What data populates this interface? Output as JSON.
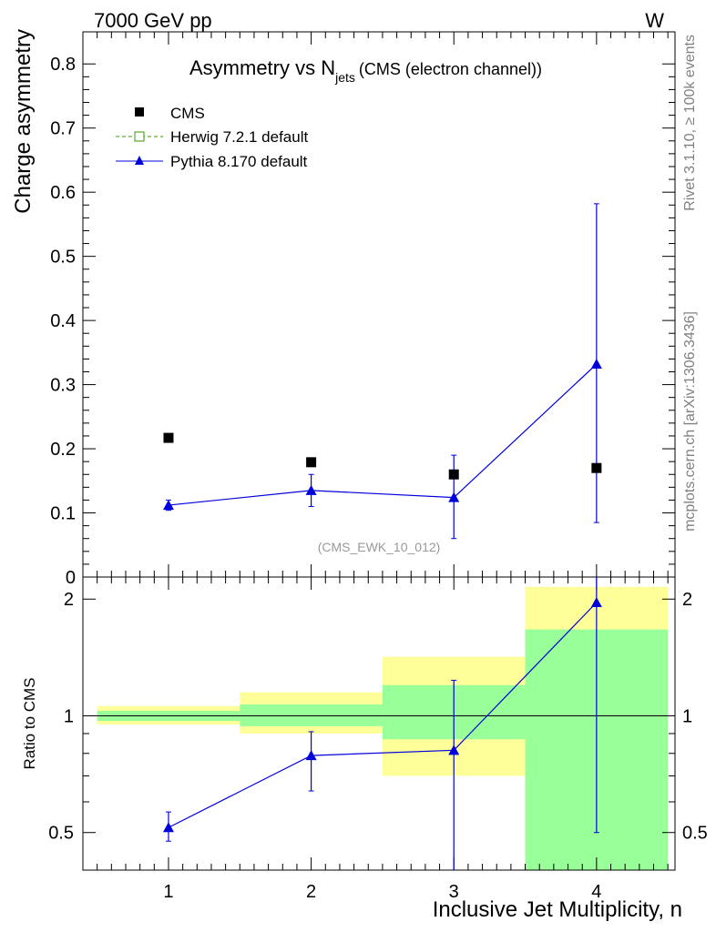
{
  "header": {
    "energy_label": "7000 GeV pp",
    "process_label": "W"
  },
  "side_labels": {
    "rivet": "Rivet 3.1.10, ≥ 100k events",
    "mcplots": "mcplots.cern.ch [arXiv:1306.3436]"
  },
  "chart_data": [
    {
      "type": "scatter",
      "title_main": "Asymmetry vs N",
      "title_sub": "jets",
      "title_suffix": "(CMS (electron channel))",
      "ylabel": "Charge asymmetry",
      "xlabel": "",
      "analysis_tag": "(CMS_EWK_10_012)",
      "xlim": [
        0.4,
        4.55
      ],
      "ylim": [
        0,
        0.85
      ],
      "yticks": [
        0,
        0.1,
        0.2,
        0.3,
        0.4,
        0.5,
        0.6,
        0.7,
        0.8
      ],
      "ytick_labels": [
        "0",
        "0.1",
        "0.2",
        "0.3",
        "0.4",
        "0.5",
        "0.6",
        "0.7",
        "0.8"
      ],
      "legend": [
        "CMS",
        "Herwig 7.2.1 default",
        "Pythia 8.170 default"
      ],
      "legend_position": "top-left",
      "colors": {
        "data": "#000000",
        "herwig": "#339900",
        "pythia": "#0000dd"
      },
      "series": [
        {
          "name": "CMS",
          "x": [
            1,
            2,
            3,
            4
          ],
          "y": [
            0.217,
            0.179,
            0.16,
            0.17
          ]
        },
        {
          "name": "Herwig 7.2.1 default",
          "x": [],
          "y": []
        },
        {
          "name": "Pythia 8.170 default",
          "x": [
            1,
            2,
            3,
            4
          ],
          "y": [
            0.112,
            0.135,
            0.124,
            0.332
          ],
          "y_err_low": [
            0.008,
            0.025,
            0.064,
            0.247
          ],
          "y_err_high": [
            0.008,
            0.025,
            0.066,
            0.25
          ]
        }
      ]
    },
    {
      "type": "scatter",
      "ylabel": "Ratio to CMS",
      "xlabel": "Inclusive Jet Multiplicity, n",
      "xlim": [
        0.4,
        4.55
      ],
      "ylim": [
        0.4,
        2.28
      ],
      "xticks": [
        1,
        2,
        3,
        4
      ],
      "xtick_labels": [
        "1",
        "2",
        "3",
        "4"
      ],
      "yticks": [
        0.5,
        1,
        2
      ],
      "ytick_labels": [
        "0.5",
        "1",
        "2"
      ],
      "bands": [
        {
          "x_low": 0.5,
          "x_high": 1.5,
          "stat_low": 0.97,
          "stat_high": 1.03,
          "total_low": 0.95,
          "total_high": 1.06
        },
        {
          "x_low": 1.5,
          "x_high": 2.5,
          "stat_low": 0.94,
          "stat_high": 1.07,
          "total_low": 0.9,
          "total_high": 1.15
        },
        {
          "x_low": 2.5,
          "x_high": 3.5,
          "stat_low": 0.87,
          "stat_high": 1.2,
          "total_low": 0.7,
          "total_high": 1.42
        },
        {
          "x_low": 3.5,
          "x_high": 4.5,
          "stat_low": 0.4,
          "stat_high": 1.67,
          "total_low": 0.4,
          "total_high": 2.15
        }
      ],
      "band_colors": {
        "stat": "#99ff99",
        "total": "#ffff99"
      },
      "series": [
        {
          "name": "Pythia 8.170 default",
          "x": [
            1,
            2,
            3,
            4
          ],
          "y": [
            0.515,
            0.79,
            0.815,
            1.96
          ],
          "y_err_low": [
            0.04,
            0.15,
            0.42,
            1.46
          ],
          "y_err_high": [
            0.05,
            0.12,
            0.42,
            0.4
          ]
        }
      ]
    }
  ]
}
